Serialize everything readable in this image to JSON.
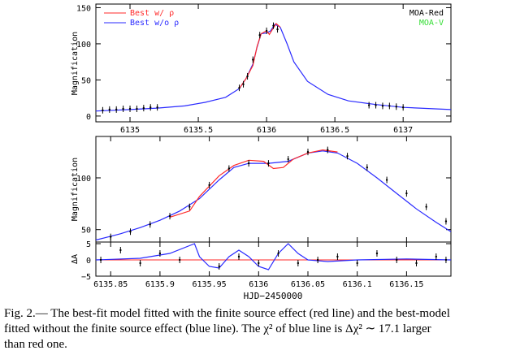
{
  "chart_data": [
    {
      "type": "line",
      "panel": "top",
      "ylabel": "Magnification",
      "xlim": [
        6134.75,
        6137.35
      ],
      "ylim": [
        -8,
        155
      ],
      "xticks": [
        "6135",
        "6135.5",
        "6136",
        "6136.5",
        "6137"
      ],
      "xtick_values": [
        6135,
        6135.5,
        6136,
        6136.5,
        6137
      ],
      "yticks": [
        "0",
        "50",
        "100",
        "150"
      ],
      "ytick_values": [
        0,
        50,
        100,
        150
      ],
      "legend_left": [
        {
          "label": "Best w/ ρ",
          "color": "#ff2a2a"
        },
        {
          "label": "Best w/o ρ",
          "color": "#2a2aff"
        }
      ],
      "legend_right": [
        {
          "label": "MOA-Red",
          "color": "#000000"
        },
        {
          "label": "MOA-V",
          "color": "#33dd33"
        }
      ],
      "series": [
        {
          "name": "Best w/o ρ",
          "color": "#2a2aff",
          "x": [
            6134.75,
            6135.0,
            6135.2,
            6135.4,
            6135.55,
            6135.7,
            6135.8,
            6135.85,
            6135.9,
            6135.93,
            6135.96,
            6136.0,
            6136.03,
            6136.06,
            6136.1,
            6136.15,
            6136.2,
            6136.3,
            6136.45,
            6136.6,
            6136.8,
            6137.0,
            6137.35
          ],
          "y": [
            7,
            9,
            11,
            14,
            19,
            26,
            38,
            52,
            72,
            95,
            114,
            115,
            118,
            127,
            123,
            100,
            75,
            48,
            30,
            21,
            16,
            12,
            9
          ]
        },
        {
          "name": "Best w/ ρ",
          "color": "#ff2a2a",
          "x": [
            6135.8,
            6135.85,
            6135.9,
            6135.93,
            6135.96,
            6136.0,
            6136.02,
            6136.04,
            6136.07,
            6136.1
          ],
          "y": [
            38,
            52,
            70,
            96,
            114,
            118,
            113,
            119,
            128,
            123
          ]
        }
      ],
      "points": {
        "x": [
          6134.8,
          6134.85,
          6134.9,
          6134.95,
          6135.0,
          6135.05,
          6135.1,
          6135.15,
          6135.2,
          6135.8,
          6135.83,
          6135.86,
          6135.9,
          6135.95,
          6136.0,
          6136.05,
          6136.08,
          6136.75,
          6136.8,
          6136.85,
          6136.9,
          6136.95,
          6137.0
        ],
        "y": [
          8,
          9,
          9,
          10,
          10,
          10,
          11,
          12,
          12,
          39,
          44,
          55,
          78,
          112,
          118,
          125,
          120,
          15,
          15,
          14,
          14,
          13,
          12
        ]
      }
    },
    {
      "type": "line",
      "panel": "middle",
      "ylabel": "Magnification",
      "xlim": [
        6135.835,
        6136.195
      ],
      "ylim": [
        38,
        140
      ],
      "yticks": [
        "50",
        "100"
      ],
      "ytick_values": [
        50,
        100
      ],
      "series": [
        {
          "name": "Best w/o ρ",
          "color": "#2a2aff",
          "x": [
            6135.835,
            6135.86,
            6135.88,
            6135.9,
            6135.92,
            6135.94,
            6135.96,
            6135.975,
            6135.99,
            6136.01,
            6136.03,
            6136.05,
            6136.065,
            6136.08,
            6136.1,
            6136.12,
            6136.14,
            6136.16,
            6136.18,
            6136.195
          ],
          "y": [
            40,
            46,
            52,
            59,
            68,
            80,
            98,
            110,
            114,
            114,
            116,
            124,
            126,
            124,
            114,
            100,
            85,
            70,
            57,
            48
          ]
        },
        {
          "name": "Best w/ ρ",
          "color": "#ff2a2a",
          "x": [
            6135.91,
            6135.93,
            6135.94,
            6135.96,
            6135.975,
            6135.99,
            6136.005,
            6136.015,
            6136.025,
            6136.035,
            6136.05,
            6136.065,
            6136.08
          ],
          "y": [
            62,
            68,
            82,
            102,
            112,
            117,
            116,
            109,
            110,
            118,
            124,
            127,
            125
          ]
        }
      ],
      "points": {
        "x": [
          6135.85,
          6135.87,
          6135.89,
          6135.91,
          6135.93,
          6135.95,
          6135.97,
          6135.99,
          6136.01,
          6136.03,
          6136.05,
          6136.07,
          6136.09,
          6136.11,
          6136.13,
          6136.15,
          6136.17,
          6136.19
        ],
        "y": [
          43,
          48,
          55,
          63,
          72,
          93,
          109,
          114,
          114,
          118,
          125,
          127,
          121,
          110,
          98,
          85,
          72,
          58
        ]
      }
    },
    {
      "type": "line",
      "panel": "residual",
      "ylabel": "ΔA",
      "xlabel": "HJD−2450000",
      "xlim": [
        6135.835,
        6136.195
      ],
      "ylim": [
        -5,
        5.5
      ],
      "xticks": [
        "6135.85",
        "6135.9",
        "6135.95",
        "6136",
        "6136.05",
        "6136.1",
        "6136.15"
      ],
      "xtick_values": [
        6135.85,
        6135.9,
        6135.95,
        6136,
        6136.05,
        6136.1,
        6136.15
      ],
      "yticks": [
        "−5",
        "0",
        "5"
      ],
      "ytick_values": [
        -5,
        0,
        5
      ],
      "series": [
        {
          "name": "residual",
          "color": "#2a2aff",
          "x": [
            6135.835,
            6135.88,
            6135.91,
            6135.935,
            6135.94,
            6135.95,
            6135.96,
            6135.97,
            6135.98,
            6135.99,
            6136.0,
            6136.01,
            6136.02,
            6136.03,
            6136.04,
            6136.05,
            6136.07,
            6136.1,
            6136.15,
            6136.195
          ],
          "y": [
            0,
            0.5,
            2,
            5,
            1,
            -2,
            -2.5,
            1,
            3,
            1,
            -2,
            -3,
            2,
            5,
            2,
            0,
            -0.5,
            0,
            0.3,
            0
          ]
        }
      ],
      "points": {
        "x": [
          6135.84,
          6135.86,
          6135.88,
          6135.9,
          6135.92,
          6135.96,
          6135.98,
          6136.0,
          6136.02,
          6136.04,
          6136.06,
          6136.08,
          6136.1,
          6136.12,
          6136.14,
          6136.16,
          6136.18,
          6136.19
        ],
        "y": [
          0,
          3,
          -1,
          2,
          0,
          -2,
          1,
          -1,
          2,
          -1,
          0,
          1,
          -1,
          2,
          0,
          -1,
          1,
          0
        ]
      }
    }
  ],
  "caption": {
    "lines": [
      "Fig. 2.— The best-fit model fitted with the finite source effect (red line) and the best-model",
      "fitted without the finite source effect (blue line).  The χ² of blue line is Δχ² ∼ 17.1 larger",
      "than red one."
    ]
  }
}
